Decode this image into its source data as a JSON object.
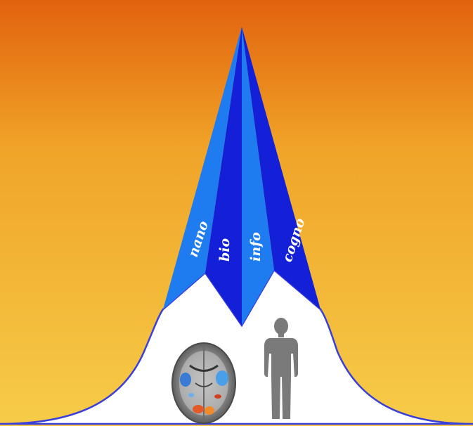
{
  "figure": {
    "pillars": [
      {
        "id": "nano",
        "label": "nano",
        "color": "#1E7BF0"
      },
      {
        "id": "bio",
        "label": "bio",
        "color": "#1420D8"
      },
      {
        "id": "info",
        "label": "info",
        "color": "#1E7BF0"
      },
      {
        "id": "cogno",
        "label": "cogno",
        "color": "#1420D8"
      }
    ],
    "icons": [
      {
        "id": "brain-scan",
        "name": "brain-scan-icon"
      },
      {
        "id": "human",
        "name": "human-silhouette-icon"
      }
    ],
    "colors": {
      "sky_top": "#E2620E",
      "sky_mid": "#F0A428",
      "sky_bottom": "#F6CC48",
      "bell_fill": "#FFFFFF",
      "bell_outline": "#3B3FD8",
      "human": "#7A7A7A"
    }
  }
}
